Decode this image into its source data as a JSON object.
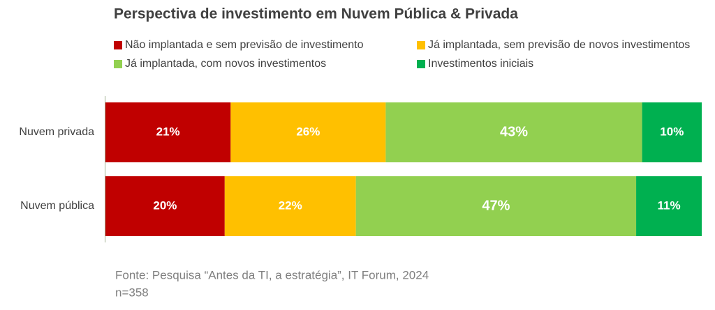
{
  "chart_data": {
    "type": "stacked_bar_horizontal",
    "title": "Perspectiva de investimento em Nuvem Pública & Privada",
    "categories": [
      "Nuvem privada",
      "Nuvem pública"
    ],
    "series": [
      {
        "name": "Não implantada e sem previsão de investimento",
        "color": "#c00000",
        "values": [
          21,
          20
        ],
        "value_labels": [
          "21%",
          "20%"
        ]
      },
      {
        "name": "Já implantada, sem previsão de novos investimentos",
        "color": "#ffc000",
        "values": [
          26,
          22
        ],
        "value_labels": [
          "26%",
          "22%"
        ]
      },
      {
        "name": "Já implantada, com novos investimentos",
        "color": "#92d050",
        "values": [
          43,
          47
        ],
        "value_labels": [
          "43%",
          "47%"
        ]
      },
      {
        "name": "Investimentos iniciais",
        "color": "#00b050",
        "values": [
          10,
          11
        ],
        "value_labels": [
          "10%",
          "11%"
        ]
      }
    ],
    "footnotes": [
      "Fonte: Pesquisa “Antes da TI, a estratégia”, IT Forum, 2024",
      "n=358"
    ]
  }
}
